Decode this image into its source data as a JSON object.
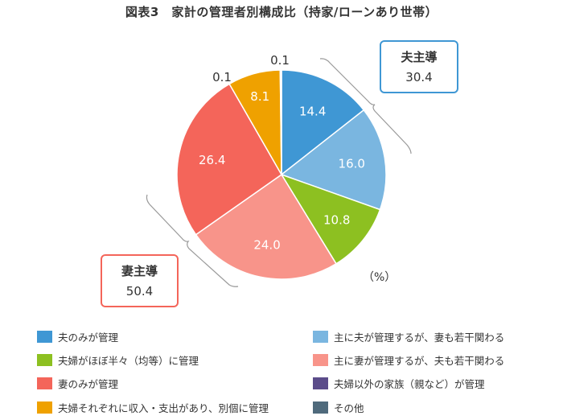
{
  "title": "図表3　家計の管理者別構成比（持家/ローンあり世帯）",
  "unit_label": "（%）",
  "callouts": {
    "husband_led": {
      "title": "夫主導",
      "value": "30.4",
      "color": "#3F97D4"
    },
    "wife_led": {
      "title": "妻主導",
      "value": "50.4",
      "color": "#F4655A"
    }
  },
  "chart_data": {
    "type": "pie",
    "title": "図表3　家計の管理者別構成比（持家/ローンあり世帯）",
    "unit": "%",
    "start_angle": "12 o'clock, clockwise",
    "slices": [
      {
        "label": "夫のみが管理",
        "value": 14.4,
        "color": "#3F97D4",
        "label_pos": "inside"
      },
      {
        "label": "主に夫が管理するが、妻も若干関わる",
        "value": 16.0,
        "color": "#7AB6E0",
        "label_pos": "inside"
      },
      {
        "label": "夫婦がほぼ半々（均等）に管理",
        "value": 10.8,
        "color": "#8DC021",
        "label_pos": "inside"
      },
      {
        "label": "主に妻が管理するが、夫も若干関わる",
        "value": 24.0,
        "color": "#F8948A",
        "label_pos": "inside"
      },
      {
        "label": "妻のみが管理",
        "value": 26.4,
        "color": "#F4655A",
        "label_pos": "inside"
      },
      {
        "label": "夫婦それぞれに収入・支出があり、別個に管理",
        "value": 8.1,
        "color": "#EFA100",
        "label_pos": "inside"
      },
      {
        "label": "夫婦以外の家族（親など）が管理",
        "value": 0.1,
        "color": "#5B4C8A",
        "label_pos": "outside"
      },
      {
        "label": "その他",
        "value": 0.1,
        "color": "#4F6A7C",
        "label_pos": "outside"
      }
    ],
    "groups": [
      {
        "label": "夫主導",
        "value": 30.4,
        "members": [
          "夫のみが管理",
          "主に夫が管理するが、妻も若干関わる"
        ]
      },
      {
        "label": "妻主導",
        "value": 50.4,
        "members": [
          "主に妻が管理するが、夫も若干関わる",
          "妻のみが管理"
        ]
      }
    ],
    "legend_position": "bottom"
  },
  "legend": {
    "items": [
      {
        "label": "夫のみが管理",
        "color": "#3F97D4"
      },
      {
        "label": "主に夫が管理するが、妻も若干関わる",
        "color": "#7AB6E0"
      },
      {
        "label": "夫婦がほぼ半々（均等）に管理",
        "color": "#8DC021"
      },
      {
        "label": "主に妻が管理するが、夫も若干関わる",
        "color": "#F8948A"
      },
      {
        "label": "妻のみが管理",
        "color": "#F4655A"
      },
      {
        "label": "夫婦以外の家族（親など）が管理",
        "color": "#5B4C8A"
      },
      {
        "label": "夫婦それぞれに収入・支出があり、別個に管理",
        "color": "#EFA100"
      },
      {
        "label": "その他",
        "color": "#4F6A7C"
      }
    ]
  }
}
